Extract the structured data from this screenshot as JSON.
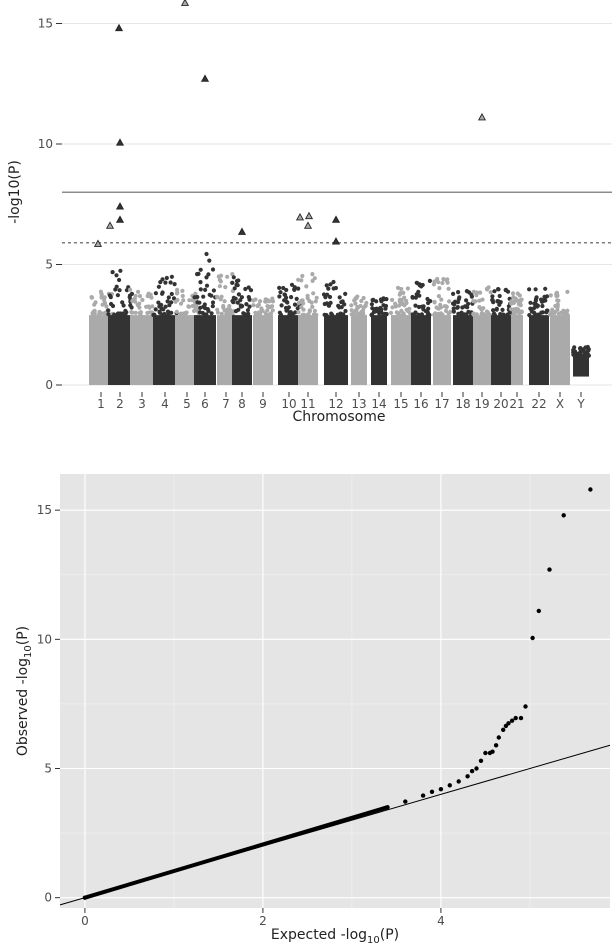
{
  "chart_data": [
    {
      "type": "scatter",
      "subtype": "manhattan",
      "title": "",
      "xlabel": "Chromosome",
      "ylabel": "-log10(P)",
      "ylim": [
        0,
        16
      ],
      "y_ticks": [
        0,
        5,
        10,
        15
      ],
      "grid": "horizontal gridlines only",
      "background": "#ffffff",
      "chromosomes": [
        "1",
        "2",
        "3",
        "4",
        "5",
        "6",
        "7",
        "8",
        "9",
        "10",
        "11",
        "12",
        "13",
        "14",
        "15",
        "16",
        "17",
        "18",
        "19",
        "20",
        "21",
        "22",
        "X",
        "Y"
      ],
      "chromosome_colors": [
        "#aaaaaa",
        "#333333"
      ],
      "reference_lines": [
        {
          "y": 8.0,
          "style": "solid",
          "color": "#666666"
        },
        {
          "y": 5.9,
          "style": "dashed",
          "color": "#555555"
        }
      ],
      "background_band_max": [
        3.9,
        4.9,
        4.0,
        4.5,
        4.1,
        5.5,
        4.6,
        4.6,
        3.6,
        4.2,
        4.7,
        4.4,
        3.7,
        3.6,
        4.2,
        4.4,
        4.5,
        4.0,
        4.2,
        4.0,
        3.8,
        4.0,
        3.9,
        1.6
      ],
      "highlighted_hits": [
        {
          "chromosome": "1",
          "value": 5.85,
          "color": "#aaaaaa"
        },
        {
          "chromosome": "2",
          "value": 14.8,
          "color": "#333333"
        },
        {
          "chromosome": "2",
          "value": 10.05,
          "color": "#333333"
        },
        {
          "chromosome": "2",
          "value": 7.4,
          "color": "#333333"
        },
        {
          "chromosome": "2",
          "value": 6.85,
          "color": "#333333"
        },
        {
          "chromosome": "2",
          "value": 6.6,
          "color": "#aaaaaa"
        },
        {
          "chromosome": "5",
          "value": 15.85,
          "color": "#aaaaaa"
        },
        {
          "chromosome": "6",
          "value": 12.7,
          "color": "#333333"
        },
        {
          "chromosome": "8",
          "value": 6.35,
          "color": "#333333"
        },
        {
          "chromosome": "11",
          "value": 6.95,
          "color": "#aaaaaa"
        },
        {
          "chromosome": "11",
          "value": 7.0,
          "color": "#aaaaaa"
        },
        {
          "chromosome": "11",
          "value": 6.6,
          "color": "#aaaaaa"
        },
        {
          "chromosome": "12",
          "value": 6.85,
          "color": "#333333"
        },
        {
          "chromosome": "12",
          "value": 5.95,
          "color": "#333333"
        },
        {
          "chromosome": "19",
          "value": 11.1,
          "color": "#aaaaaa"
        }
      ]
    },
    {
      "type": "scatter",
      "subtype": "qq",
      "title": "",
      "xlabel": "Expected  -log",
      "xlabel_sub": "10",
      "xlabel_tail": "(P)",
      "ylabel": "Observed  -log",
      "ylabel_sub": "10",
      "ylabel_tail": "(P)",
      "xlim": [
        -0.28,
        5.9
      ],
      "ylim": [
        -0.4,
        16.4
      ],
      "x_ticks": [
        0,
        2,
        4
      ],
      "y_ticks": [
        0,
        5,
        10,
        15
      ],
      "background": "#e5e5e5",
      "grid": "white major and minor gridlines",
      "reference_line": {
        "slope": 1,
        "intercept": 0
      },
      "points": [
        [
          0,
          0
        ],
        [
          3.4,
          3.5
        ],
        [
          3.6,
          3.72
        ],
        [
          3.8,
          3.95
        ],
        [
          3.9,
          4.1
        ],
        [
          4.0,
          4.2
        ],
        [
          4.1,
          4.35
        ],
        [
          4.2,
          4.5
        ],
        [
          4.3,
          4.7
        ],
        [
          4.35,
          4.9
        ],
        [
          4.4,
          5.0
        ],
        [
          4.45,
          5.3
        ],
        [
          4.5,
          5.6
        ],
        [
          4.55,
          5.6
        ],
        [
          4.58,
          5.65
        ],
        [
          4.62,
          5.9
        ],
        [
          4.65,
          6.2
        ],
        [
          4.7,
          6.5
        ],
        [
          4.73,
          6.65
        ],
        [
          4.76,
          6.75
        ],
        [
          4.8,
          6.85
        ],
        [
          4.84,
          6.95
        ],
        [
          4.9,
          6.95
        ],
        [
          4.95,
          7.4
        ],
        [
          5.03,
          10.05
        ],
        [
          5.1,
          11.1
        ],
        [
          5.22,
          12.7
        ],
        [
          5.38,
          14.8
        ],
        [
          5.68,
          15.8
        ]
      ],
      "diagonal_curve_until": 3.4
    }
  ]
}
